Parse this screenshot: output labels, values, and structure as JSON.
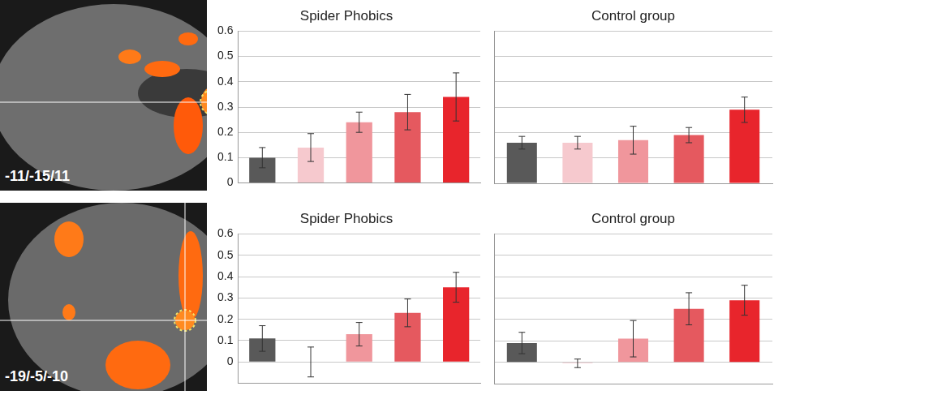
{
  "images": [
    {
      "label": "-11/-15/11"
    },
    {
      "label": "-19/-5/-10"
    }
  ],
  "chart_data": [
    {
      "type": "bar",
      "title": "Spider Phobics",
      "categories": [
        null,
        null,
        null,
        null,
        null
      ],
      "values": [
        0.1,
        0.14,
        0.24,
        0.28,
        0.34
      ],
      "errors": [
        0.04,
        0.055,
        0.04,
        0.07,
        0.095
      ],
      "colors": [
        "#595959",
        "#f6c9ce",
        "#f0969c",
        "#e5595f",
        "#e8252c"
      ],
      "ylim": [
        0,
        0.6
      ],
      "yticks": [
        0,
        0.1,
        0.2,
        0.3,
        0.4,
        0.5,
        0.6
      ],
      "grid": true,
      "tick_labels": "y"
    },
    {
      "type": "bar",
      "title": "Control group",
      "categories": [
        null,
        null,
        null,
        null,
        null
      ],
      "values": [
        0.16,
        0.16,
        0.17,
        0.19,
        0.29
      ],
      "errors": [
        0.025,
        0.025,
        0.055,
        0.03,
        0.05
      ],
      "colors": [
        "#595959",
        "#f6c9ce",
        "#f0969c",
        "#e5595f",
        "#e8252c"
      ],
      "ylim": [
        0,
        0.6
      ],
      "yticks": [
        0,
        0.1,
        0.2,
        0.3,
        0.4,
        0.5,
        0.6
      ],
      "grid": true,
      "tick_labels": false
    },
    {
      "type": "bar",
      "title": "Spider Phobics",
      "categories": [
        null,
        null,
        null,
        null,
        null
      ],
      "values": [
        0.11,
        0.0,
        0.13,
        0.23,
        0.35
      ],
      "errors": [
        0.06,
        0.07,
        0.055,
        0.065,
        0.07
      ],
      "colors": [
        "#595959",
        "#f6c9ce",
        "#f0969c",
        "#e5595f",
        "#e8252c"
      ],
      "ylim": [
        -0.1,
        0.6
      ],
      "yticks": [
        0,
        0.1,
        0.2,
        0.3,
        0.4,
        0.5,
        0.6
      ],
      "grid": true,
      "tick_labels": "y"
    },
    {
      "type": "bar",
      "title": "Control group",
      "categories": [
        null,
        null,
        null,
        null,
        null
      ],
      "values": [
        0.09,
        -0.005,
        0.11,
        0.25,
        0.29
      ],
      "errors": [
        0.05,
        0.02,
        0.085,
        0.075,
        0.07
      ],
      "colors": [
        "#595959",
        "#f6c9ce",
        "#f0969c",
        "#e5595f",
        "#e8252c"
      ],
      "ylim": [
        -0.1,
        0.6
      ],
      "yticks": [
        0,
        0.1,
        0.2,
        0.3,
        0.4,
        0.5,
        0.6
      ],
      "grid": true,
      "tick_labels": false
    }
  ]
}
